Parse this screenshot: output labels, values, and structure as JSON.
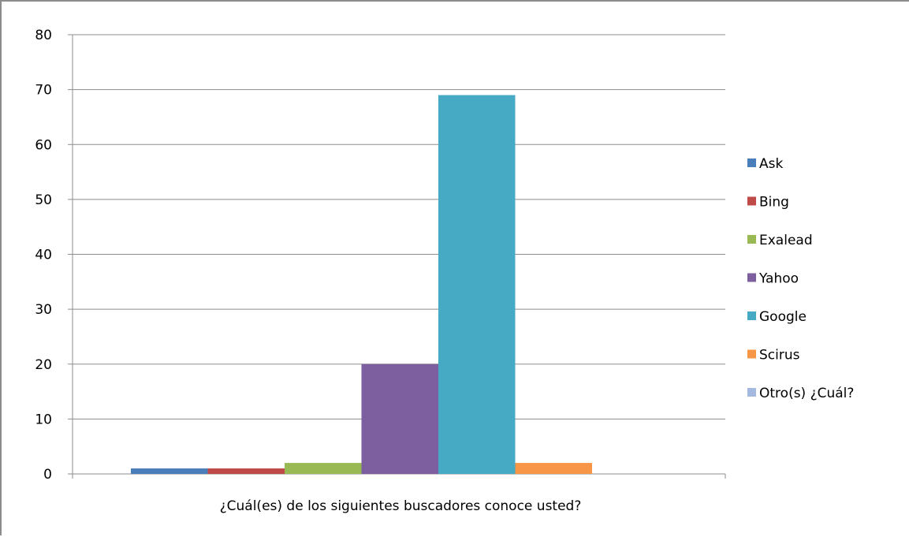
{
  "chart_data": {
    "type": "bar",
    "title": "",
    "xlabel": "¿Cuál(es) de los siguientes buscadores conoce usted?",
    "ylabel": "",
    "ylim": [
      0,
      80
    ],
    "yticks": [
      0,
      10,
      20,
      30,
      40,
      50,
      60,
      70,
      80
    ],
    "grid": true,
    "legend_position": "right",
    "categories": [
      "¿Cuál(es) de los siguientes buscadores conoce usted?"
    ],
    "series": [
      {
        "name": "Ask",
        "values": [
          1
        ],
        "color": "#4a7ebb"
      },
      {
        "name": "Bing",
        "values": [
          1
        ],
        "color": "#be4b48"
      },
      {
        "name": "Exalead",
        "values": [
          2
        ],
        "color": "#98b954"
      },
      {
        "name": "Yahoo",
        "values": [
          20
        ],
        "color": "#7d5fa0"
      },
      {
        "name": "Google",
        "values": [
          69
        ],
        "color": "#46aac5"
      },
      {
        "name": "Scirus",
        "values": [
          2
        ],
        "color": "#f79646"
      },
      {
        "name": "Otro(s) ¿Cuál?",
        "values": [
          0
        ],
        "color": "#a5b8e0"
      }
    ]
  }
}
